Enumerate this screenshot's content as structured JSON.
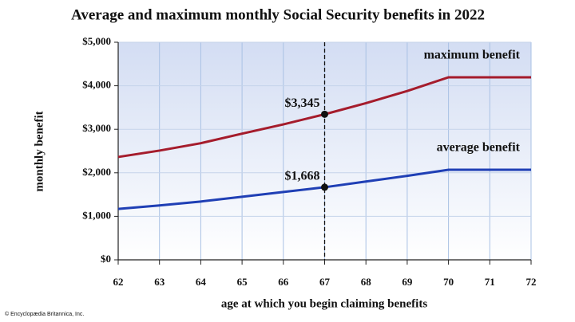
{
  "chart_data": {
    "type": "line",
    "title": "Average and maximum monthly Social Security benefits in 2022",
    "x_label": "age at which you begin claiming benefits",
    "y_label": "monthly benefit",
    "credit": "© Encyclopædia Britannica, Inc.",
    "x": [
      62,
      63,
      64,
      65,
      66,
      67,
      68,
      69,
      70,
      71,
      72
    ],
    "series": [
      {
        "name": "maximum benefit",
        "color": "#a51c2c",
        "values": [
          2364,
          2510,
          2680,
          2900,
          3113,
          3345,
          3600,
          3880,
          4194,
          4194,
          4194
        ]
      },
      {
        "name": "average benefit",
        "color": "#1f3fb5",
        "values": [
          1170,
          1250,
          1340,
          1450,
          1560,
          1668,
          1800,
          1930,
          2070,
          2070,
          2070
        ]
      }
    ],
    "annotations": [
      {
        "x": 67,
        "value": 3345,
        "label": "$3,345"
      },
      {
        "x": 67,
        "value": 1668,
        "label": "$1,668"
      }
    ],
    "reference_x": 67,
    "xlim": [
      62,
      72
    ],
    "ylim": [
      0,
      5000
    ],
    "xticks": [
      62,
      63,
      64,
      65,
      66,
      67,
      68,
      69,
      70,
      71,
      72
    ],
    "yticks": [
      {
        "value": 0,
        "label": "$0"
      },
      {
        "value": 1000,
        "label": "$1,000"
      },
      {
        "value": 2000,
        "label": "$2,000"
      },
      {
        "value": 3000,
        "label": "$3,000"
      },
      {
        "value": 4000,
        "label": "$4,000"
      },
      {
        "value": 5000,
        "label": "$5,000"
      }
    ],
    "grid": true
  }
}
